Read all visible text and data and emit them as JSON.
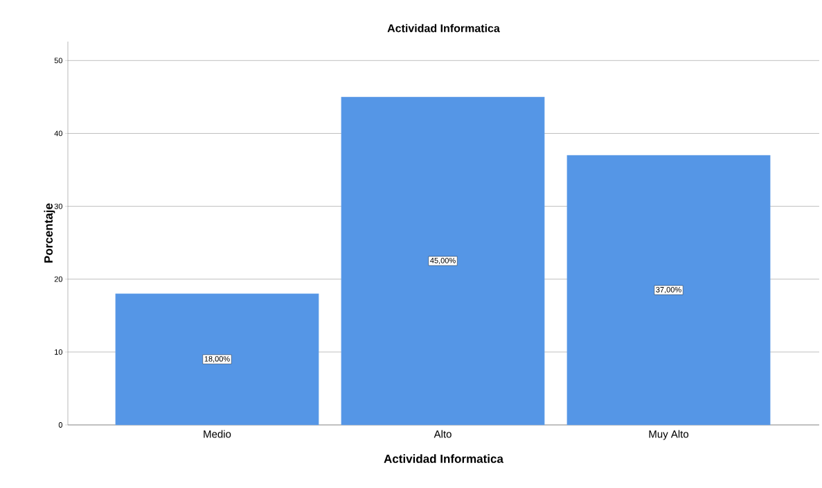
{
  "chart_data": {
    "type": "bar",
    "title": "Actividad Informatica",
    "xlabel": "Actividad Informatica",
    "ylabel": "Porcentaje",
    "categories": [
      "Medio",
      "Alto",
      "Muy Alto"
    ],
    "values": [
      18,
      45,
      37
    ],
    "value_labels": [
      "18,00%",
      "45,00%",
      "37,00%"
    ],
    "color": "#5596e6",
    "ylim": [
      0,
      52.6
    ],
    "yticks": [
      0,
      10,
      20,
      30,
      40,
      50
    ],
    "grid": "y"
  }
}
